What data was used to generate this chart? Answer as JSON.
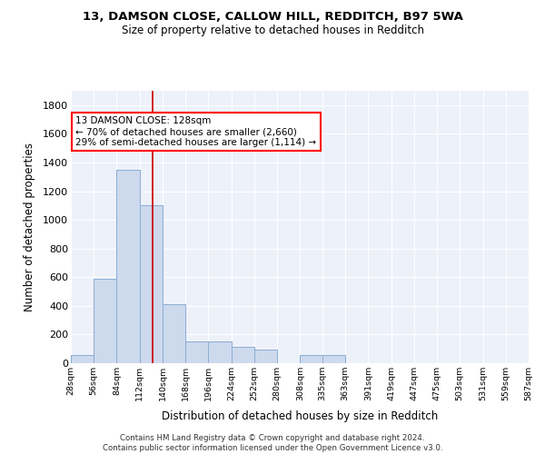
{
  "title1": "13, DAMSON CLOSE, CALLOW HILL, REDDITCH, B97 5WA",
  "title2": "Size of property relative to detached houses in Redditch",
  "xlabel": "Distribution of detached houses by size in Redditch",
  "ylabel": "Number of detached properties",
  "bar_color": "#cdd9ed",
  "bar_edge_color": "#8aadd4",
  "bg_color": "#edf1fa",
  "grid_color": "#ffffff",
  "vline_color": "#cc0000",
  "property_size": 128,
  "bin_edges": [
    28,
    56,
    84,
    112,
    140,
    168,
    196,
    224,
    252,
    280,
    308,
    335,
    363,
    391,
    419,
    447,
    475,
    503,
    531,
    559,
    587
  ],
  "bar_heights": [
    55,
    590,
    1350,
    1100,
    410,
    155,
    155,
    115,
    95,
    0,
    60,
    60,
    0,
    0,
    0,
    0,
    0,
    0,
    0,
    0
  ],
  "annotation_lines": [
    "13 DAMSON CLOSE: 128sqm",
    "← 70% of detached houses are smaller (2,660)",
    "29% of semi-detached houses are larger (1,114) →"
  ],
  "ylim": [
    0,
    1900
  ],
  "xlim": [
    28,
    587
  ],
  "footer": "Contains HM Land Registry data © Crown copyright and database right 2024.\nContains public sector information licensed under the Open Government Licence v3.0.",
  "tick_labels": [
    "28sqm",
    "56sqm",
    "84sqm",
    "112sqm",
    "140sqm",
    "168sqm",
    "196sqm",
    "224sqm",
    "252sqm",
    "280sqm",
    "308sqm",
    "335sqm",
    "363sqm",
    "391sqm",
    "419sqm",
    "447sqm",
    "475sqm",
    "503sqm",
    "531sqm",
    "559sqm",
    "587sqm"
  ],
  "yticks": [
    0,
    200,
    400,
    600,
    800,
    1000,
    1200,
    1400,
    1600,
    1800
  ]
}
